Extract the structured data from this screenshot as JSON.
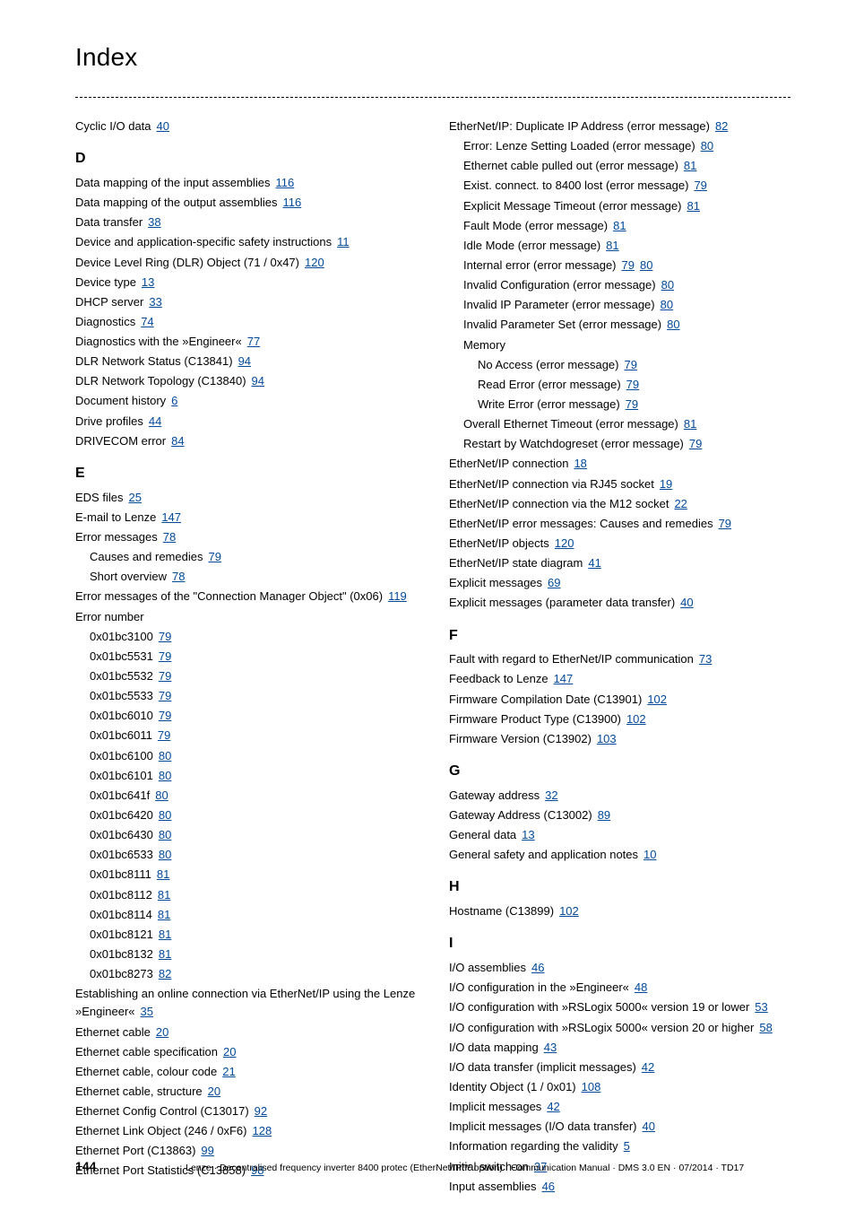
{
  "title": "Index",
  "footer": {
    "page": "144",
    "text": "Lenze · Decentralised frequency inverter 8400 protec (EtherNet/IP™ option) · Communication Manual · DMS 3.0 EN · 07/2014 · TD17"
  },
  "entries": [
    {
      "t": "entry",
      "text": "Cyclic I/O data",
      "pages": [
        "40"
      ]
    },
    {
      "t": "letter",
      "text": "D"
    },
    {
      "t": "entry",
      "text": "Data mapping of the input assemblies",
      "pages": [
        "116"
      ]
    },
    {
      "t": "entry",
      "text": "Data mapping of the output assemblies",
      "pages": [
        "116"
      ]
    },
    {
      "t": "entry",
      "text": "Data transfer",
      "pages": [
        "38"
      ]
    },
    {
      "t": "entry",
      "text": "Device and application-specific safety instructions",
      "pages": [
        "11"
      ]
    },
    {
      "t": "entry",
      "text": "Device Level Ring (DLR) Object (71 / 0x47)",
      "pages": [
        "120"
      ]
    },
    {
      "t": "entry",
      "text": "Device type",
      "pages": [
        "13"
      ]
    },
    {
      "t": "entry",
      "text": "DHCP server",
      "pages": [
        "33"
      ]
    },
    {
      "t": "entry",
      "text": "Diagnostics",
      "pages": [
        "74"
      ]
    },
    {
      "t": "entry",
      "text": "Diagnostics with the »Engineer«",
      "pages": [
        "77"
      ]
    },
    {
      "t": "entry",
      "text": "DLR Network Status (C13841)",
      "pages": [
        "94"
      ]
    },
    {
      "t": "entry",
      "text": "DLR Network Topology (C13840)",
      "pages": [
        "94"
      ]
    },
    {
      "t": "entry",
      "text": "Document history",
      "pages": [
        "6"
      ]
    },
    {
      "t": "entry",
      "text": "Drive profiles",
      "pages": [
        "44"
      ]
    },
    {
      "t": "entry",
      "text": "DRIVECOM error",
      "pages": [
        "84"
      ]
    },
    {
      "t": "letter",
      "text": "E"
    },
    {
      "t": "entry",
      "text": "EDS files",
      "pages": [
        "25"
      ]
    },
    {
      "t": "entry",
      "text": "E-mail to Lenze",
      "pages": [
        "147"
      ]
    },
    {
      "t": "entry",
      "text": "Error messages",
      "pages": [
        "78"
      ]
    },
    {
      "t": "entry",
      "indent": 1,
      "text": "Causes and remedies",
      "pages": [
        "79"
      ]
    },
    {
      "t": "entry",
      "indent": 1,
      "text": "Short overview",
      "pages": [
        "78"
      ]
    },
    {
      "t": "entry",
      "text": "Error messages of the \"Connection Manager Object\" (0x06)",
      "pages": [
        "119"
      ]
    },
    {
      "t": "entry",
      "text": "Error number"
    },
    {
      "t": "entry",
      "indent": 1,
      "text": "0x01bc3100",
      "pages": [
        "79"
      ]
    },
    {
      "t": "entry",
      "indent": 1,
      "text": "0x01bc5531",
      "pages": [
        "79"
      ]
    },
    {
      "t": "entry",
      "indent": 1,
      "text": "0x01bc5532",
      "pages": [
        "79"
      ]
    },
    {
      "t": "entry",
      "indent": 1,
      "text": "0x01bc5533",
      "pages": [
        "79"
      ]
    },
    {
      "t": "entry",
      "indent": 1,
      "text": "0x01bc6010",
      "pages": [
        "79"
      ]
    },
    {
      "t": "entry",
      "indent": 1,
      "text": "0x01bc6011",
      "pages": [
        "79"
      ]
    },
    {
      "t": "entry",
      "indent": 1,
      "text": "0x01bc6100",
      "pages": [
        "80"
      ]
    },
    {
      "t": "entry",
      "indent": 1,
      "text": "0x01bc6101",
      "pages": [
        "80"
      ]
    },
    {
      "t": "entry",
      "indent": 1,
      "text": "0x01bc641f",
      "pages": [
        "80"
      ]
    },
    {
      "t": "entry",
      "indent": 1,
      "text": "0x01bc6420",
      "pages": [
        "80"
      ]
    },
    {
      "t": "entry",
      "indent": 1,
      "text": "0x01bc6430",
      "pages": [
        "80"
      ]
    },
    {
      "t": "entry",
      "indent": 1,
      "text": "0x01bc6533",
      "pages": [
        "80"
      ]
    },
    {
      "t": "entry",
      "indent": 1,
      "text": "0x01bc8111",
      "pages": [
        "81"
      ]
    },
    {
      "t": "entry",
      "indent": 1,
      "text": "0x01bc8112",
      "pages": [
        "81"
      ]
    },
    {
      "t": "entry",
      "indent": 1,
      "text": "0x01bc8114",
      "pages": [
        "81"
      ]
    },
    {
      "t": "entry",
      "indent": 1,
      "text": "0x01bc8121",
      "pages": [
        "81"
      ]
    },
    {
      "t": "entry",
      "indent": 1,
      "text": "0x01bc8132",
      "pages": [
        "81"
      ]
    },
    {
      "t": "entry",
      "indent": 1,
      "text": "0x01bc8273",
      "pages": [
        "82"
      ]
    },
    {
      "t": "entry",
      "text": "Establishing an online connection via EtherNet/IP using the Lenze »Engineer«",
      "pages": [
        "35"
      ]
    },
    {
      "t": "entry",
      "text": "Ethernet cable",
      "pages": [
        "20"
      ]
    },
    {
      "t": "entry",
      "text": "Ethernet cable specification",
      "pages": [
        "20"
      ]
    },
    {
      "t": "entry",
      "text": "Ethernet cable, colour code",
      "pages": [
        "21"
      ]
    },
    {
      "t": "entry",
      "text": "Ethernet cable, structure",
      "pages": [
        "20"
      ]
    },
    {
      "t": "entry",
      "text": "Ethernet Config Control (C13017)",
      "pages": [
        "92"
      ]
    },
    {
      "t": "entry",
      "text": "Ethernet Link Object (246 / 0xF6)",
      "pages": [
        "128"
      ]
    },
    {
      "t": "entry",
      "text": "Ethernet Port (C13863)",
      "pages": [
        "99"
      ]
    },
    {
      "t": "entry",
      "text": "Ethernet Port Statistics (C13858)",
      "pages": [
        "98"
      ]
    },
    {
      "t": "entry",
      "text": "EtherNet/IP: Duplicate IP Address (error message)",
      "pages": [
        "82"
      ]
    },
    {
      "t": "entry",
      "indent": 1,
      "text": "Error: Lenze Setting Loaded (error message)",
      "pages": [
        "80"
      ]
    },
    {
      "t": "entry",
      "indent": 1,
      "text": "Ethernet cable pulled out (error message)",
      "pages": [
        "81"
      ]
    },
    {
      "t": "entry",
      "indent": 1,
      "text": "Exist. connect. to 8400 lost (error message)",
      "pages": [
        "79"
      ]
    },
    {
      "t": "entry",
      "indent": 1,
      "text": "Explicit Message Timeout (error message)",
      "pages": [
        "81"
      ]
    },
    {
      "t": "entry",
      "indent": 1,
      "text": "Fault Mode (error message)",
      "pages": [
        "81"
      ]
    },
    {
      "t": "entry",
      "indent": 1,
      "text": "Idle Mode (error message)",
      "pages": [
        "81"
      ]
    },
    {
      "t": "entry",
      "indent": 1,
      "text": "Internal error (error message)",
      "pages": [
        "79",
        "80"
      ]
    },
    {
      "t": "entry",
      "indent": 1,
      "text": "Invalid Configuration (error message)",
      "pages": [
        "80"
      ]
    },
    {
      "t": "entry",
      "indent": 1,
      "text": "Invalid IP Parameter (error message)",
      "pages": [
        "80"
      ]
    },
    {
      "t": "entry",
      "indent": 1,
      "text": "Invalid Parameter Set (error message)",
      "pages": [
        "80"
      ]
    },
    {
      "t": "entry",
      "indent": 1,
      "text": "Memory"
    },
    {
      "t": "entry",
      "indent": 2,
      "text": "No Access (error message)",
      "pages": [
        "79"
      ]
    },
    {
      "t": "entry",
      "indent": 2,
      "text": "Read Error (error message)",
      "pages": [
        "79"
      ]
    },
    {
      "t": "entry",
      "indent": 2,
      "text": "Write Error (error message)",
      "pages": [
        "79"
      ]
    },
    {
      "t": "entry",
      "indent": 1,
      "text": "Overall Ethernet Timeout (error message)",
      "pages": [
        "81"
      ]
    },
    {
      "t": "entry",
      "indent": 1,
      "text": "Restart by Watchdogreset (error message)",
      "pages": [
        "79"
      ]
    },
    {
      "t": "entry",
      "text": "EtherNet/IP connection",
      "pages": [
        "18"
      ]
    },
    {
      "t": "entry",
      "text": "EtherNet/IP connection via RJ45 socket",
      "pages": [
        "19"
      ]
    },
    {
      "t": "entry",
      "text": "EtherNet/IP connection via the M12 socket",
      "pages": [
        "22"
      ]
    },
    {
      "t": "entry",
      "text": "EtherNet/IP error messages: Causes and remedies",
      "pages": [
        "79"
      ]
    },
    {
      "t": "entry",
      "text": "EtherNet/IP objects",
      "pages": [
        "120"
      ]
    },
    {
      "t": "entry",
      "text": "EtherNet/IP state diagram",
      "pages": [
        "41"
      ]
    },
    {
      "t": "entry",
      "text": "Explicit messages",
      "pages": [
        "69"
      ]
    },
    {
      "t": "entry",
      "text": "Explicit messages (parameter data transfer)",
      "pages": [
        "40"
      ]
    },
    {
      "t": "letter",
      "text": "F"
    },
    {
      "t": "entry",
      "text": "Fault with regard to EtherNet/IP communication",
      "pages": [
        "73"
      ]
    },
    {
      "t": "entry",
      "text": "Feedback to Lenze",
      "pages": [
        "147"
      ]
    },
    {
      "t": "entry",
      "text": "Firmware Compilation Date (C13901)",
      "pages": [
        "102"
      ]
    },
    {
      "t": "entry",
      "text": "Firmware Product Type (C13900)",
      "pages": [
        "102"
      ]
    },
    {
      "t": "entry",
      "text": "Firmware Version (C13902)",
      "pages": [
        "103"
      ]
    },
    {
      "t": "letter",
      "text": "G"
    },
    {
      "t": "entry",
      "text": "Gateway address",
      "pages": [
        "32"
      ]
    },
    {
      "t": "entry",
      "text": "Gateway Address (C13002)",
      "pages": [
        "89"
      ]
    },
    {
      "t": "entry",
      "text": "General data",
      "pages": [
        "13"
      ]
    },
    {
      "t": "entry",
      "text": "General safety and application notes",
      "pages": [
        "10"
      ]
    },
    {
      "t": "letter",
      "text": "H"
    },
    {
      "t": "entry",
      "text": "Hostname (C13899)",
      "pages": [
        "102"
      ]
    },
    {
      "t": "letter",
      "text": "I"
    },
    {
      "t": "entry",
      "text": "I/O assemblies",
      "pages": [
        "46"
      ]
    },
    {
      "t": "entry",
      "text": "I/O configuration in the »Engineer«",
      "pages": [
        "48"
      ]
    },
    {
      "t": "entry",
      "text": "I/O configuration with »RSLogix 5000« version 19 or lower",
      "pages": [
        "53"
      ]
    },
    {
      "t": "entry",
      "text": "I/O configuration with »RSLogix 5000« version 20 or higher",
      "pages": [
        "58"
      ]
    },
    {
      "t": "entry",
      "text": "I/O data mapping",
      "pages": [
        "43"
      ]
    },
    {
      "t": "entry",
      "text": "I/O data transfer (implicit messages)",
      "pages": [
        "42"
      ]
    },
    {
      "t": "entry",
      "text": "Identity Object (1 / 0x01)",
      "pages": [
        "108"
      ]
    },
    {
      "t": "entry",
      "text": "Implicit messages",
      "pages": [
        "42"
      ]
    },
    {
      "t": "entry",
      "text": "Implicit messages (I/O data transfer)",
      "pages": [
        "40"
      ]
    },
    {
      "t": "entry",
      "text": "Information regarding the validity",
      "pages": [
        "5"
      ]
    },
    {
      "t": "entry",
      "text": "Initial switch-on",
      "pages": [
        "37"
      ]
    },
    {
      "t": "entry",
      "text": "Input assemblies",
      "pages": [
        "46"
      ]
    }
  ]
}
